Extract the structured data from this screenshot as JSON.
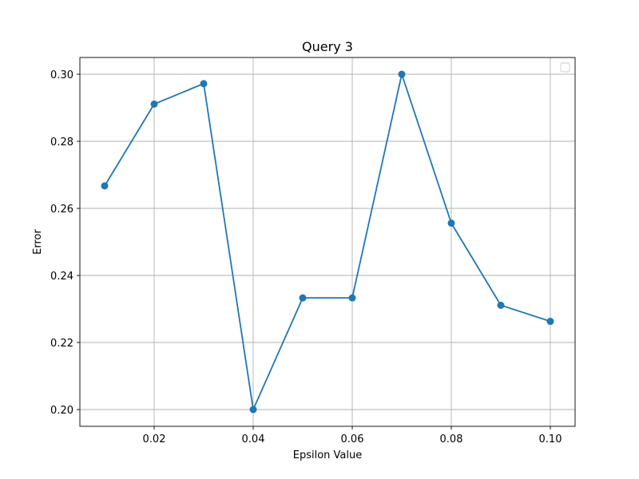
{
  "chart_data": {
    "type": "line",
    "title": "Query 3",
    "xlabel": "Epsilon Value",
    "ylabel": "Error",
    "xlim": [
      0.005,
      0.105
    ],
    "ylim": [
      0.195,
      0.305
    ],
    "x_ticks": [
      0.02,
      0.04,
      0.06,
      0.08,
      0.1
    ],
    "x_tick_labels": [
      "0.02",
      "0.04",
      "0.06",
      "0.08",
      "0.10"
    ],
    "y_ticks": [
      0.2,
      0.22,
      0.24,
      0.26,
      0.28,
      0.3
    ],
    "y_tick_labels": [
      "0.20",
      "0.22",
      "0.24",
      "0.26",
      "0.28",
      "0.30"
    ],
    "grid": true,
    "legend": {
      "placement": "top-right",
      "entries": []
    },
    "series": [
      {
        "color": "#1f77b4",
        "marker": "circle",
        "x": [
          0.01,
          0.02,
          0.03,
          0.04,
          0.05,
          0.06,
          0.07,
          0.08,
          0.09,
          0.1
        ],
        "y": [
          0.2667,
          0.2911,
          0.2972,
          0.2,
          0.2333,
          0.2333,
          0.3,
          0.2556,
          0.2311,
          0.2263
        ]
      }
    ]
  }
}
